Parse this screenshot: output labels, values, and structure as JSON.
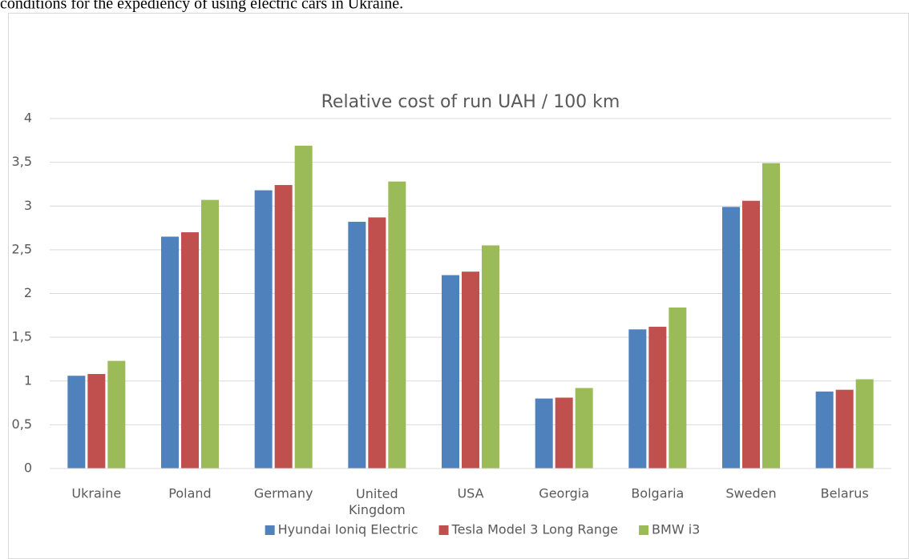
{
  "document_text": "conditions for the expediency of using electric cars in Ukraine.",
  "chart_data": {
    "type": "bar",
    "title": "Relative cost of run UAH / 100 km",
    "categories": [
      "Ukraine",
      "Poland",
      "Germany",
      "United Kingdom",
      "USA",
      "Georgia",
      "Bolgaria",
      "Sweden",
      "Belarus"
    ],
    "series": [
      {
        "name": "Hyundai Ioniq Electric",
        "color": "#4f81bd",
        "values": [
          1.06,
          2.65,
          3.18,
          2.82,
          2.21,
          0.8,
          1.59,
          2.99,
          0.88
        ]
      },
      {
        "name": "Tesla Model 3 Long Range",
        "color": "#c0504d",
        "values": [
          1.08,
          2.7,
          3.24,
          2.87,
          2.25,
          0.81,
          1.62,
          3.06,
          0.9
        ]
      },
      {
        "name": "BMW i3",
        "color": "#9bbb59",
        "values": [
          1.23,
          3.07,
          3.69,
          3.28,
          2.55,
          0.92,
          1.84,
          3.49,
          1.02
        ]
      }
    ],
    "ylim": [
      0,
      4
    ],
    "yticks": [
      0,
      {
        "value": 0.5,
        "label": "0,5"
      },
      1,
      {
        "value": 1.5,
        "label": "1,5"
      },
      2,
      {
        "value": 2.5,
        "label": "2,5"
      },
      3,
      {
        "value": 3.5,
        "label": "3,5"
      },
      4
    ],
    "grid": true,
    "legend": "bottom"
  }
}
